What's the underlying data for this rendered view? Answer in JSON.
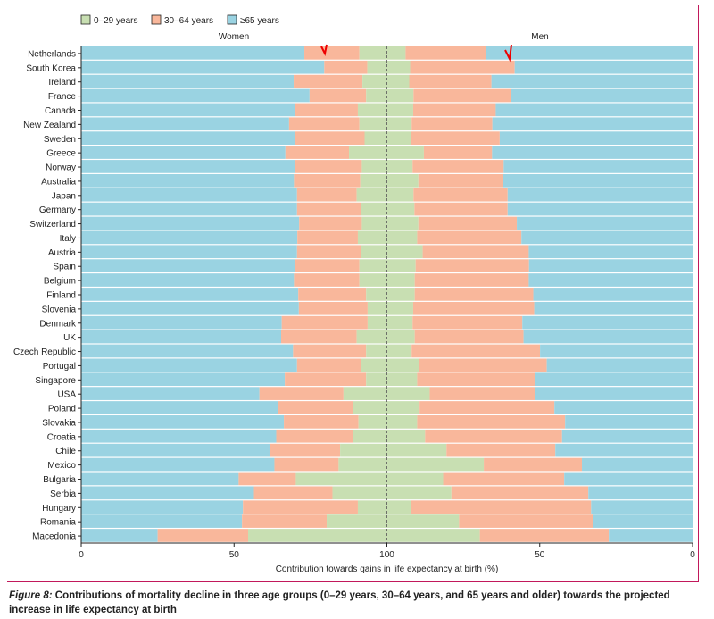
{
  "chart_data": {
    "type": "bar",
    "orientation": "horizontal-stacked-diverging",
    "panels": [
      "Women",
      "Men"
    ],
    "xlabel": "Contribution towards gains in life expectancy at birth (%)",
    "xlim": [
      0,
      100
    ],
    "x_ticks": [
      "0",
      "50",
      "100",
      "50",
      "0"
    ],
    "legend": {
      "placement": "top-left",
      "entries": [
        "0–29 years",
        "30–64 years",
        "≥65 years"
      ]
    },
    "colors": {
      "0-29": "#c8dfb2",
      "30-64": "#f9b79b",
      "65+": "#9ad3e2"
    },
    "categories": [
      "Netherlands",
      "South Korea",
      "Ireland",
      "France",
      "Canada",
      "New Zealand",
      "Sweden",
      "Greece",
      "Norway",
      "Australia",
      "Japan",
      "Germany",
      "Switzerland",
      "Italy",
      "Austria",
      "Spain",
      "Belgium",
      "Finland",
      "Slovenia",
      "Denmark",
      "UK",
      "Czech Republic",
      "Portugal",
      "Singapore",
      "USA",
      "Poland",
      "Slovakia",
      "Croatia",
      "Chile",
      "Mexico",
      "Bulgaria",
      "Serbia",
      "Hungary",
      "Romania",
      "Macedonia"
    ],
    "series": {
      "women_0_29": [
        9.0,
        6.4,
        8.0,
        6.8,
        9.5,
        9.0,
        7.3,
        12.4,
        8.2,
        8.7,
        9.9,
        8.5,
        8.2,
        9.5,
        8.5,
        9.0,
        9.0,
        6.8,
        6.3,
        6.3,
        9.9,
        6.8,
        8.5,
        6.8,
        14.2,
        11.2,
        9.3,
        11.0,
        15.3,
        15.8,
        29.8,
        17.8,
        9.5,
        19.7,
        45.4
      ],
      "women_30_64": [
        18.0,
        14.1,
        22.5,
        18.5,
        20.6,
        23.0,
        22.7,
        20.8,
        21.8,
        21.7,
        19.5,
        20.9,
        20.5,
        19.8,
        20.9,
        21.1,
        21.4,
        22.2,
        22.5,
        28.1,
        24.7,
        23.9,
        20.9,
        26.6,
        27.5,
        24.4,
        24.4,
        25.2,
        23.1,
        21.0,
        18.7,
        25.7,
        37.6,
        27.7,
        29.6
      ],
      "men_0_29": [
        6.1,
        7.6,
        7.3,
        8.7,
        8.6,
        8.1,
        7.8,
        12.1,
        8.4,
        10.3,
        8.7,
        9.0,
        10.3,
        9.9,
        11.7,
        9.4,
        9.1,
        9.1,
        8.6,
        8.4,
        9.1,
        8.1,
        10.4,
        9.9,
        14.0,
        10.7,
        9.9,
        12.5,
        19.5,
        31.7,
        18.4,
        21.1,
        7.8,
        23.6,
        30.4
      ],
      "men_30_64": [
        26.4,
        34.2,
        26.9,
        31.9,
        27.0,
        26.4,
        29.1,
        22.3,
        29.8,
        27.8,
        30.8,
        30.5,
        32.2,
        34.1,
        34.7,
        37.1,
        37.3,
        38.8,
        39.6,
        35.9,
        35.6,
        42.0,
        41.9,
        38.5,
        34.5,
        44.1,
        48.4,
        44.8,
        35.6,
        32.1,
        39.6,
        44.8,
        59.0,
        43.7,
        42.2
      ]
    },
    "annotations": [
      "red-checkmark-women-netherlands",
      "red-checkmark-men-netherlands"
    ]
  },
  "caption": {
    "figure_label": "Figure 8:",
    "text": " Contributions of mortality decline in three age groups (0–29 years, 30–64 years, and 65 years and older) towards the projected increase in life expectancy at birth"
  }
}
